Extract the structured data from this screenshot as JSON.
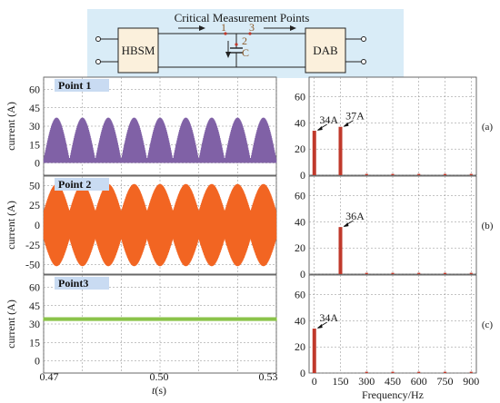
{
  "diagram": {
    "title": "Critical Measurement Points",
    "hbsm_label": "HBSM",
    "dab_label": "DAB",
    "point_labels": [
      "1",
      "2",
      "3"
    ],
    "capacitor_label": "C",
    "colors": {
      "background": "#d9ecf7",
      "block": "#fbf0dc",
      "point": "#c0392b"
    }
  },
  "chart_data": [
    {
      "type": "line",
      "panel": "Point 1",
      "ylabel": "current (A)",
      "ylim": [
        -10,
        70
      ],
      "yticks": [
        0,
        15,
        30,
        45,
        60
      ],
      "xlim": [
        0.47,
        0.53
      ],
      "color": "#8061a6",
      "description_values": {
        "dc_offset": 20,
        "envelope_peak": 37,
        "envelope_min": 3,
        "ripple_hz": 150
      }
    },
    {
      "type": "line",
      "panel": "Point 2",
      "ylabel": "current (A)",
      "ylim": [
        -62,
        62
      ],
      "yticks": [
        -50,
        -25,
        0,
        25,
        50
      ],
      "xlim": [
        0.47,
        0.53
      ],
      "color": "#f26522",
      "description_values": {
        "dc_offset": 0,
        "envelope_peak": 52,
        "envelope_min": 18,
        "ripple_hz": 150
      }
    },
    {
      "type": "line",
      "panel": "Point3",
      "ylabel": "current (A)",
      "ylim": [
        -10,
        70
      ],
      "yticks": [
        0,
        15,
        30,
        45,
        60
      ],
      "xlim": [
        0.47,
        0.53
      ],
      "color": "#8bc34a",
      "description_values": {
        "dc_offset": 34,
        "band": 3
      }
    },
    {
      "type": "bar",
      "panel": "(a)",
      "xlabel": "",
      "ylabel": "",
      "xlim": [
        -30,
        930
      ],
      "ylim": [
        0,
        75
      ],
      "yticks": [
        0,
        20,
        40,
        60
      ],
      "x": [
        0,
        150,
        300,
        450,
        600,
        750,
        900
      ],
      "values": [
        34,
        37,
        1,
        1,
        1,
        1,
        1
      ],
      "annotations": [
        {
          "x": 0,
          "y": 34,
          "text": "34A"
        },
        {
          "x": 150,
          "y": 37,
          "text": "37A"
        }
      ],
      "color": "#c0392b"
    },
    {
      "type": "bar",
      "panel": "(b)",
      "xlabel": "",
      "ylabel": "",
      "xlim": [
        -30,
        930
      ],
      "ylim": [
        0,
        75
      ],
      "yticks": [
        0,
        20,
        40,
        60
      ],
      "x": [
        0,
        150,
        300,
        450,
        600,
        750,
        900
      ],
      "values": [
        0,
        36,
        1,
        1,
        1,
        1,
        1
      ],
      "annotations": [
        {
          "x": 150,
          "y": 36,
          "text": "36A"
        }
      ],
      "color": "#c0392b"
    },
    {
      "type": "bar",
      "panel": "(c)",
      "xlabel": "Frequency/Hz",
      "ylabel": "",
      "xlim": [
        -30,
        930
      ],
      "ylim": [
        0,
        75
      ],
      "yticks": [
        0,
        20,
        40,
        60
      ],
      "xticks": [
        0,
        150,
        300,
        450,
        600,
        750,
        900
      ],
      "x": [
        0,
        150,
        300,
        450,
        600,
        750,
        900
      ],
      "values": [
        34,
        0,
        1,
        1,
        1,
        1,
        1
      ],
      "annotations": [
        {
          "x": 0,
          "y": 34,
          "text": "34A"
        }
      ],
      "color": "#c0392b"
    }
  ],
  "time_axis": {
    "ticks": [
      "0.47",
      "0.50",
      "0.53"
    ],
    "label_italic": "t",
    "label_rest": "(s)"
  }
}
